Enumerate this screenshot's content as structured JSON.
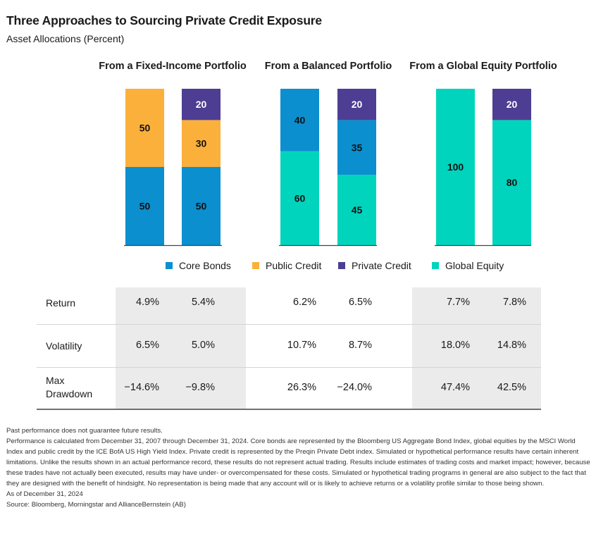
{
  "title": "Three Approaches to Sourcing Private Credit Exposure",
  "subtitle": "Asset Allocations (Percent)",
  "colors": {
    "core_bonds": "#0b8fcf",
    "public_credit": "#fbb03b",
    "private_credit": "#4d3e93",
    "global_equity": "#00d4bd"
  },
  "chart_data": {
    "type": "bar",
    "stacked": true,
    "ylim": [
      0,
      100
    ],
    "panels": [
      {
        "title": "From a Fixed-Income Portfolio",
        "bars": [
          {
            "segments": [
              {
                "series": "Core Bonds",
                "value": 50
              },
              {
                "series": "Public Credit",
                "value": 50
              }
            ]
          },
          {
            "segments": [
              {
                "series": "Core Bonds",
                "value": 50
              },
              {
                "series": "Public Credit",
                "value": 30
              },
              {
                "series": "Private Credit",
                "value": 20
              }
            ]
          }
        ]
      },
      {
        "title": "From a Balanced Portfolio",
        "bars": [
          {
            "segments": [
              {
                "series": "Global Equity",
                "value": 60
              },
              {
                "series": "Core Bonds",
                "value": 40
              }
            ]
          },
          {
            "segments": [
              {
                "series": "Global Equity",
                "value": 45
              },
              {
                "series": "Core Bonds",
                "value": 35
              },
              {
                "series": "Private Credit",
                "value": 20
              }
            ]
          }
        ]
      },
      {
        "title": "From a Global Equity Portfolio",
        "bars": [
          {
            "segments": [
              {
                "series": "Global Equity",
                "value": 100
              }
            ]
          },
          {
            "segments": [
              {
                "series": "Global Equity",
                "value": 80
              },
              {
                "series": "Private Credit",
                "value": 20
              }
            ]
          }
        ]
      }
    ],
    "legend": [
      {
        "name": "Core Bonds",
        "color": "#0b8fcf"
      },
      {
        "name": "Public Credit",
        "color": "#fbb03b"
      },
      {
        "name": "Private Credit",
        "color": "#4d3e93"
      },
      {
        "name": "Global Equity",
        "color": "#00d4bd"
      }
    ]
  },
  "stats": {
    "rows": [
      {
        "label": "Return",
        "values": [
          "4.9%",
          "5.4%",
          "6.2%",
          "6.5%",
          "7.7%",
          "7.8%"
        ]
      },
      {
        "label": "Volatility",
        "values": [
          "6.5%",
          "5.0%",
          "10.7%",
          "8.7%",
          "18.0%",
          "14.8%"
        ]
      },
      {
        "label": "Max\nDrawdown",
        "values": [
          "−14.6%",
          "−9.8%",
          "26.3%",
          "−24.0%",
          "47.4%",
          "42.5%"
        ]
      }
    ]
  },
  "footnotes": [
    "Past performance does not guarantee future results.",
    "Performance is calculated from December 31, 2007 through December 31, 2024. Core bonds are represented by the Bloomberg US Aggregate Bond Index, global equities by the MSCI World Index and public credit by the ICE BofA US High Yield Index. Private credit is represented by the Preqin Private Debt index. Simulated or hypothetical performance results have certain inherent limitations. Unlike the results shown in an actual performance record, these results do not represent actual trading. Results include estimates of trading costs and market impact; however, because these trades have not actually been executed, results may have under- or overcompensated for these costs. Simulated or hypothetical trading programs in general are also subject to the fact that they are designed with the benefit of hindsight. No representation is being made that any account will or is likely to achieve returns or a volatility profile similar to those being shown.",
    "As of December 31, 2024",
    "Source: Bloomberg, Morningstar and AllianceBernstein (AB)"
  ]
}
